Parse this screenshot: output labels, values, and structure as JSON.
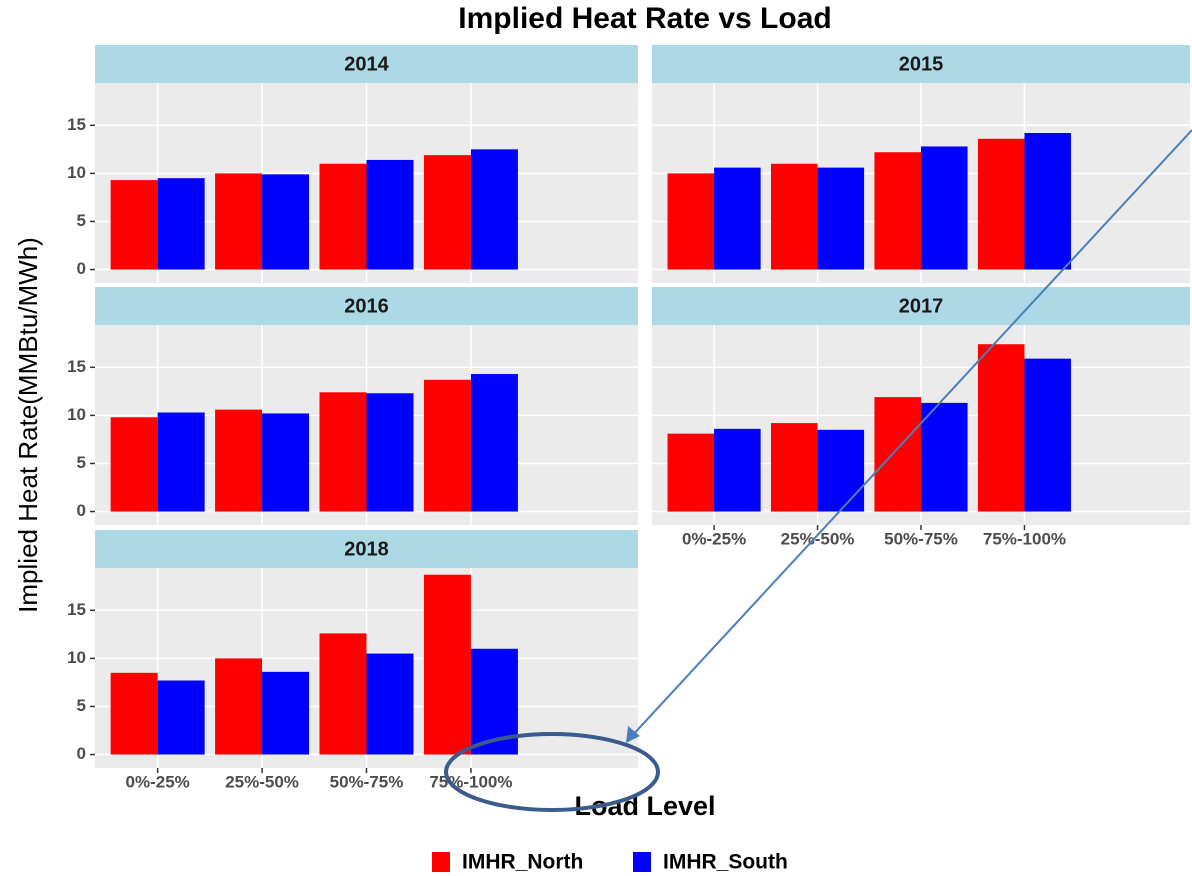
{
  "chart_data": {
    "type": "bar",
    "title": "Implied Heat Rate vs Load",
    "xlabel": "Load Level",
    "ylabel": "Implied Heat Rate(MMBtu/MWh)",
    "categories": [
      "0%-25%",
      "25%-50%",
      "50%-75%",
      "75%-100%"
    ],
    "series": [
      {
        "name": "IMHR_North",
        "color": "#ff0000"
      },
      {
        "name": "IMHR_South",
        "color": "#0000ff"
      }
    ],
    "ylim": [
      -1.4,
      19.4
    ],
    "yticks": [
      0,
      5,
      10,
      15
    ],
    "grid": true,
    "facets": [
      {
        "title": "2014",
        "values": [
          [
            9.3,
            10.0,
            11.0,
            11.9
          ],
          [
            9.5,
            9.9,
            11.4,
            12.5
          ]
        ]
      },
      {
        "title": "2015",
        "values": [
          [
            10.0,
            11.0,
            12.2,
            13.6
          ],
          [
            10.6,
            10.6,
            12.8,
            14.2
          ]
        ]
      },
      {
        "title": "2016",
        "values": [
          [
            9.8,
            10.6,
            12.4,
            13.7
          ],
          [
            10.3,
            10.2,
            12.3,
            14.3
          ]
        ]
      },
      {
        "title": "2017",
        "values": [
          [
            8.1,
            9.2,
            11.9,
            17.4
          ],
          [
            8.6,
            8.5,
            11.3,
            15.9
          ]
        ]
      },
      {
        "title": "2018",
        "values": [
          [
            8.5,
            10.0,
            12.6,
            18.7
          ],
          [
            7.7,
            8.6,
            10.5,
            11.0
          ]
        ]
      }
    ]
  }
}
